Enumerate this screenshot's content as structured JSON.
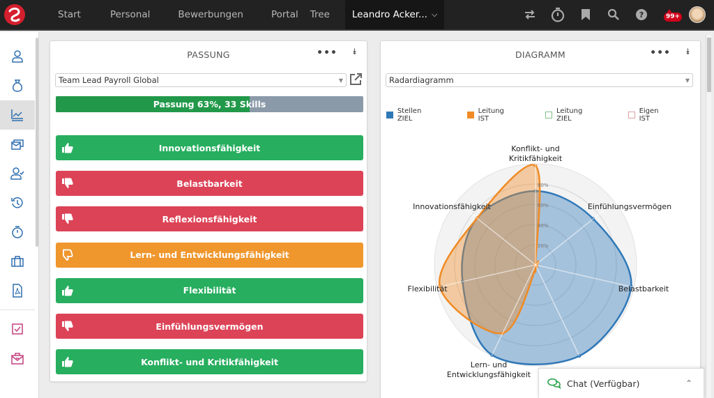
{
  "nav": {
    "items": [
      {
        "label": "Start"
      },
      {
        "label": "Personal"
      },
      {
        "label": "Bewerbungen"
      },
      {
        "label": "Portal"
      },
      {
        "label": "Tree"
      }
    ],
    "user": "Leandro Acker...",
    "notification_badge": "99+",
    "icons": [
      "switch-icon",
      "stopwatch-icon",
      "bookmark-icon",
      "search-icon",
      "help-icon",
      "notification-icon",
      "avatar"
    ]
  },
  "sidebar": {
    "items": [
      {
        "icon": "person-icon"
      },
      {
        "icon": "money-bag-icon"
      },
      {
        "icon": "chart-icon",
        "active": true
      },
      {
        "icon": "inbox-stack-icon"
      },
      {
        "icon": "person-check-icon"
      },
      {
        "icon": "history-icon"
      },
      {
        "icon": "stopwatch-icon"
      },
      {
        "icon": "briefcase-icon"
      },
      {
        "icon": "pdf-file-icon"
      },
      {
        "icon": "checkbox-icon"
      },
      {
        "icon": "mail-briefcase-icon"
      }
    ]
  },
  "fit_panel": {
    "title": "PASSUNG",
    "more_label": "•••",
    "collapse_label": "≫",
    "select_value": "Team Lead Payroll Global",
    "fit_percent": 63,
    "fit_label": "Passung 63%, 33 Skills",
    "skills": [
      {
        "label": "Innovationsfähigkeit",
        "status": "green",
        "icon": "thumbs-up-icon"
      },
      {
        "label": "Belastbarkeit",
        "status": "red",
        "icon": "thumbs-down-icon"
      },
      {
        "label": "Reflexionsfähigkeit",
        "status": "red",
        "icon": "thumbs-down-icon"
      },
      {
        "label": "Lern- und Entwicklungsfähigkeit",
        "status": "orange",
        "icon": "thumbs-down-outline-icon"
      },
      {
        "label": "Flexibilität",
        "status": "green",
        "icon": "thumbs-up-icon"
      },
      {
        "label": "Einfühlungsvermögen",
        "status": "red",
        "icon": "thumbs-down-icon"
      },
      {
        "label": "Konflikt- und Kritikfähigkeit",
        "status": "green",
        "icon": "thumbs-up-icon"
      }
    ]
  },
  "chart_panel": {
    "title": "DIAGRAMM",
    "more_label": "•••",
    "collapse_label": "≫",
    "select_value": "Radardiagramm"
  },
  "chart_data": {
    "type": "radar",
    "title": "",
    "axes": [
      "Konflikt- und Kritikfähigkeit",
      "Einfühlungsvermögen",
      "Belastbarkeit",
      "",
      "Lern- und Entwicklungsfähigkeit",
      "Flexibilität",
      "Innovationsfähigkeit"
    ],
    "axis_label_lines": [
      [
        "Konflikt- und",
        "Kritikfähigkeit"
      ],
      [
        "Einfühlungsvermögen"
      ],
      [
        "Belastbarkeit"
      ],
      [
        ""
      ],
      [
        "Lern- und",
        "Entwicklungsfähigkeit"
      ],
      [
        "Flexibilität"
      ],
      [
        "Innovationsfähigkeit"
      ]
    ],
    "ring_labels": [
      "20%",
      "40%",
      "60%",
      "80%"
    ],
    "range": [
      0,
      100
    ],
    "series": [
      {
        "name": "Stellen ZIEL",
        "color": "#2f78b8",
        "visible": true,
        "values": [
          73,
          73,
          97,
          100,
          99,
          74,
          74
        ]
      },
      {
        "name": "Leitung IST",
        "color": "#f08a24",
        "visible": true,
        "values": [
          98,
          0,
          0,
          2,
          75,
          97,
          74
        ]
      },
      {
        "name": "Leitung ZIEL",
        "color": "#7fc18a",
        "visible": false,
        "values": []
      },
      {
        "name": "Eigen IST",
        "color": "#e0a0a0",
        "visible": false,
        "values": []
      }
    ]
  },
  "chat": {
    "label": "Chat (Verfügbar)"
  }
}
